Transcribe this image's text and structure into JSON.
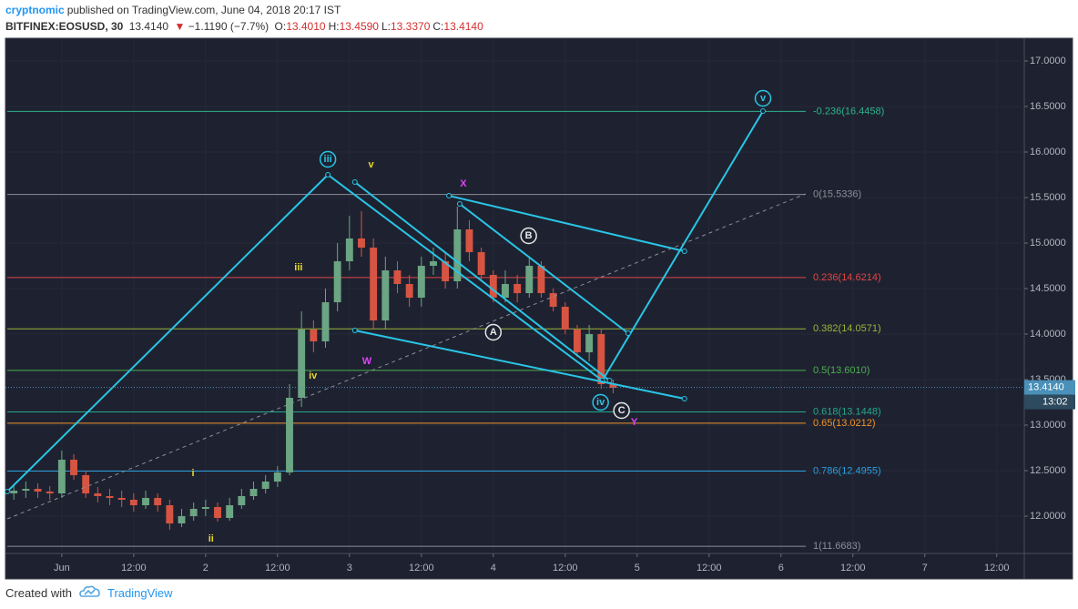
{
  "header": {
    "user": "cryptnomic",
    "published": "published on TradingView.com, June 04, 2018 20:17 IST",
    "symbol": "BITFINEX:EOSUSD, 30",
    "price": "13.4140",
    "arrow": "▼",
    "change": "−1.1190 (−7.7%)",
    "ohlc": [
      {
        "key": "O:",
        "value": "13.4010"
      },
      {
        "key": "H:",
        "value": "13.4590"
      },
      {
        "key": "L:",
        "value": "13.3370"
      },
      {
        "key": "C:",
        "value": "13.4140"
      }
    ]
  },
  "footer": {
    "created": "Created with",
    "brand": "TradingView"
  },
  "chart_data": {
    "type": "candlestick",
    "xlim": [
      -9.4,
      160.6
    ],
    "ylim": [
      11.59,
      17.22
    ],
    "grid": true,
    "xticks": [
      {
        "value": 0,
        "label": "Jun"
      },
      {
        "value": 12,
        "label": "12:00"
      },
      {
        "value": 24,
        "label": "2"
      },
      {
        "value": 36,
        "label": "12:00"
      },
      {
        "value": 48,
        "label": "3"
      },
      {
        "value": 60,
        "label": "12:00"
      },
      {
        "value": 72,
        "label": "4"
      },
      {
        "value": 84,
        "label": "12:00"
      },
      {
        "value": 96,
        "label": "5"
      },
      {
        "value": 108,
        "label": "12:00"
      },
      {
        "value": 120,
        "label": "6"
      },
      {
        "value": 132,
        "label": "12:00"
      },
      {
        "value": 144,
        "label": "7"
      },
      {
        "value": 156,
        "label": "12:00"
      }
    ],
    "yticks": [
      {
        "value": 12,
        "label": "12.0000"
      },
      {
        "value": 12.5,
        "label": "12.5000"
      },
      {
        "value": 13,
        "label": "13.0000"
      },
      {
        "value": 13.5,
        "label": "13.5000"
      },
      {
        "value": 14,
        "label": "14.0000"
      },
      {
        "value": 14.5,
        "label": "14.5000"
      },
      {
        "value": 15,
        "label": "15.0000"
      },
      {
        "value": 15.5,
        "label": "15.5000"
      },
      {
        "value": 16,
        "label": "16.0000"
      },
      {
        "value": 16.5,
        "label": "16.5000"
      },
      {
        "value": 17,
        "label": "17.0000"
      }
    ],
    "up_color": "#6ba583",
    "down_color": "#d75442",
    "x": [
      -8,
      -6,
      -4,
      -2,
      0,
      2,
      4,
      6,
      8,
      10,
      12,
      14,
      16,
      18,
      20,
      22,
      24,
      26,
      28,
      30,
      32,
      34,
      36,
      38,
      40,
      42,
      44,
      46,
      48,
      50,
      52,
      54,
      56,
      58,
      60,
      62,
      64,
      66,
      68,
      70,
      72,
      74,
      76,
      78,
      80,
      82,
      84,
      86,
      88,
      90,
      92
    ],
    "open": [
      12.25,
      12.28,
      12.3,
      12.27,
      12.25,
      12.62,
      12.45,
      12.25,
      12.22,
      12.2,
      12.18,
      12.12,
      12.2,
      12.12,
      11.92,
      12.0,
      12.08,
      12.1,
      11.98,
      12.12,
      12.22,
      12.3,
      12.38,
      12.48,
      13.3,
      14.05,
      13.92,
      14.35,
      14.8,
      15.05,
      14.95,
      14.15,
      14.7,
      14.55,
      14.4,
      14.75,
      14.8,
      14.58,
      15.15,
      14.9,
      14.65,
      14.4,
      14.55,
      14.45,
      14.75,
      14.45,
      14.3,
      14.05,
      13.8,
      14.0,
      13.45
    ],
    "high": [
      12.35,
      12.38,
      12.36,
      12.33,
      12.72,
      12.68,
      12.5,
      12.32,
      12.3,
      12.28,
      12.25,
      12.28,
      12.25,
      12.18,
      12.08,
      12.15,
      12.18,
      12.15,
      12.2,
      12.3,
      12.38,
      12.45,
      12.55,
      13.45,
      14.25,
      14.15,
      14.5,
      15.0,
      15.3,
      15.35,
      15.05,
      14.85,
      14.8,
      14.65,
      14.85,
      14.95,
      14.9,
      15.4,
      15.25,
      14.95,
      14.7,
      14.7,
      14.65,
      14.85,
      14.8,
      14.5,
      14.35,
      14.1,
      14.1,
      14.05,
      13.5
    ],
    "low": [
      12.18,
      12.2,
      12.2,
      12.18,
      12.2,
      12.4,
      12.2,
      12.15,
      12.12,
      12.1,
      12.05,
      12.08,
      12.05,
      11.85,
      11.88,
      11.95,
      12.0,
      11.94,
      11.95,
      12.08,
      12.18,
      12.25,
      12.32,
      12.45,
      13.2,
      13.8,
      13.85,
      14.25,
      14.7,
      14.85,
      14.05,
      14.05,
      14.45,
      14.3,
      14.3,
      14.65,
      14.5,
      14.5,
      14.8,
      14.6,
      14.35,
      14.35,
      14.35,
      14.4,
      14.4,
      14.25,
      14.0,
      13.75,
      13.7,
      13.4,
      13.35
    ],
    "close": [
      12.28,
      12.3,
      12.27,
      12.25,
      12.62,
      12.45,
      12.25,
      12.22,
      12.2,
      12.18,
      12.12,
      12.2,
      12.12,
      11.92,
      12.0,
      12.08,
      12.1,
      11.98,
      12.12,
      12.22,
      12.3,
      12.38,
      12.48,
      13.3,
      14.05,
      13.92,
      14.35,
      14.8,
      15.05,
      14.95,
      14.15,
      14.7,
      14.55,
      14.4,
      14.75,
      14.8,
      14.58,
      15.15,
      14.9,
      14.65,
      14.4,
      14.55,
      14.45,
      14.75,
      14.45,
      14.3,
      14.05,
      13.8,
      14.0,
      13.45,
      13.41
    ],
    "fib_levels": [
      {
        "label": "-0.236(16.4458)",
        "value": 16.4458,
        "color": "#2eb38a"
      },
      {
        "label": "0(15.5336)",
        "value": 15.5336,
        "color": "#8c8f99"
      },
      {
        "label": "0.236(14.6214)",
        "value": 14.6214,
        "color": "#e04646"
      },
      {
        "label": "0.382(14.0571)",
        "value": 14.0571,
        "color": "#9bb53c"
      },
      {
        "label": "0.5(13.6010)",
        "value": 13.601,
        "color": "#4caf50"
      },
      {
        "label": "0.618(13.1448)",
        "value": 13.1448,
        "color": "#23a88c"
      },
      {
        "label": "0.65(13.0212)",
        "value": 13.0212,
        "color": "#f0922a"
      },
      {
        "label": "0.786(12.4955)",
        "value": 12.4955,
        "color": "#2c9fe0"
      },
      {
        "label": "1(11.6683)",
        "value": 11.6683,
        "color": "#8c8f99"
      }
    ],
    "drawings": [
      {
        "x": [
          -9.1,
          44.4,
          90.2,
          117.0
        ],
        "y": [
          12.27,
          15.75,
          13.49,
          16.45
        ],
        "color": "#29c5e6"
      },
      {
        "x": [
          48.9,
          91.4
        ],
        "y": [
          15.67,
          13.49
        ],
        "color": "#29c5e6"
      },
      {
        "x": [
          48.9,
          103.9
        ],
        "y": [
          14.04,
          13.29
        ],
        "color": "#29c5e6"
      },
      {
        "x": [
          64.6,
          103.9
        ],
        "y": [
          15.52,
          14.91
        ],
        "color": "#29c5e6"
      },
      {
        "x": [
          66.4,
          94.5
        ],
        "y": [
          15.43,
          14.01
        ],
        "color": "#29c5e6"
      },
      {
        "x": [
          -9.1,
          124.1
        ],
        "y": [
          11.97,
          15.54
        ],
        "color": "#8c8f99",
        "dashed": true
      }
    ],
    "annotations": [
      {
        "text": "iii",
        "x": 44.4,
        "y": 15.92,
        "color": "#29c5e6",
        "circled": true
      },
      {
        "text": "v",
        "x": 51.6,
        "y": 15.86,
        "color": "#e8d92a"
      },
      {
        "text": "X",
        "x": 67.0,
        "y": 15.65,
        "color": "#e040fb"
      },
      {
        "text": "B",
        "x": 77.9,
        "y": 15.08,
        "color": "#e6e6e6",
        "circled": true
      },
      {
        "text": "iii",
        "x": 39.5,
        "y": 14.73,
        "color": "#e8d92a"
      },
      {
        "text": "A",
        "x": 72.0,
        "y": 14.02,
        "color": "#e6e6e6",
        "circled": true
      },
      {
        "text": "W",
        "x": 50.9,
        "y": 13.7,
        "color": "#e040fb"
      },
      {
        "text": "iv",
        "x": 41.9,
        "y": 13.54,
        "color": "#e8d92a"
      },
      {
        "text": "iv",
        "x": 89.9,
        "y": 13.25,
        "color": "#29c5e6",
        "circled": true
      },
      {
        "text": "C",
        "x": 93.4,
        "y": 13.16,
        "color": "#e6e6e6",
        "circled": true
      },
      {
        "text": "Y",
        "x": 95.5,
        "y": 13.03,
        "color": "#e040fb"
      },
      {
        "text": "i",
        "x": 21.9,
        "y": 12.47,
        "color": "#e8d92a"
      },
      {
        "text": "ii",
        "x": 24.9,
        "y": 11.75,
        "color": "#e8d92a"
      },
      {
        "text": "v",
        "x": 117.0,
        "y": 16.59,
        "color": "#29c5e6",
        "circled": true
      }
    ],
    "last": {
      "value": 13.414,
      "label": "13.4140",
      "time": "13:02",
      "color": "#4a90b8"
    }
  }
}
